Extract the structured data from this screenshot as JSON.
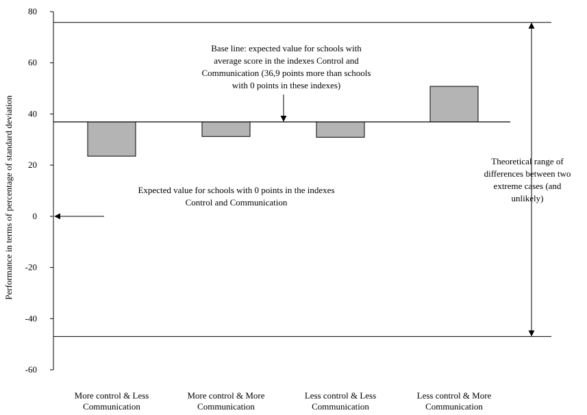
{
  "chart_data": {
    "type": "bar",
    "categories": [
      [
        "More control & Less",
        "Communication"
      ],
      [
        "More control & More",
        "Communication"
      ],
      [
        "Less control & Less",
        "Communication"
      ],
      [
        "Less control & More",
        "Communication"
      ]
    ],
    "baseline": 36.9,
    "values": [
      23.5,
      31.2,
      30.9,
      50.8
    ],
    "ylabel": "Performance in terms of percentage of standard deviation",
    "ylim": [
      -60,
      80
    ],
    "yticks": [
      80,
      60,
      40,
      20,
      0,
      -20,
      -40,
      -60
    ],
    "range_lines": [
      75.8,
      -47
    ],
    "grid": false,
    "legend": "none",
    "colors": {
      "bar_fill": "#b4b4b4",
      "line": "#000000"
    },
    "annotations": {
      "baseline_note": [
        "Base line: expected value for schools with",
        "average score in the indexes Control and",
        "Communication (36,9 points more than schools",
        "with 0 points in these indexes)"
      ],
      "zero_note": [
        "Expected value for schools with 0 points in the indexes",
        "Control and Communication"
      ],
      "range_note": [
        "Theoretical range of",
        "differences between two",
        "extreme cases (and",
        "unlikely)"
      ]
    }
  }
}
